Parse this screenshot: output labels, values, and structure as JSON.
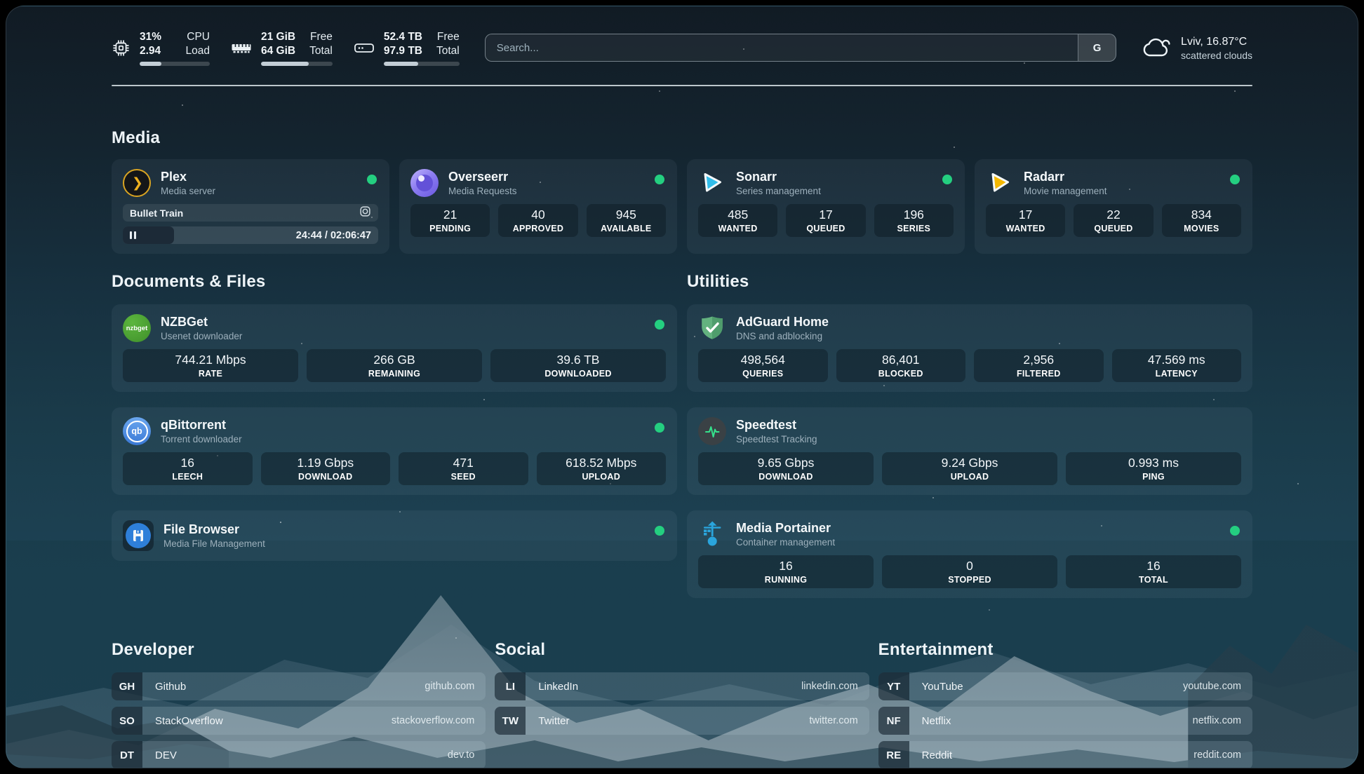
{
  "header": {
    "system_stats": [
      {
        "icon": "cpu-icon",
        "value_top": "31%",
        "value_bottom": "2.94",
        "label_top": "CPU",
        "label_bottom": "Load",
        "progress_pct": 31
      },
      {
        "icon": "ram-icon",
        "value_top": "21 GiB",
        "value_bottom": "64 GiB",
        "label_top": "Free",
        "label_bottom": "Total",
        "progress_pct": 67
      },
      {
        "icon": "disk-icon",
        "value_top": "52.4 TB",
        "value_bottom": "97.9 TB",
        "label_top": "Free",
        "label_bottom": "Total",
        "progress_pct": 46
      }
    ],
    "search": {
      "placeholder": "Search...",
      "button_label": "G"
    },
    "weather": {
      "location_temp": "Lviv, 16.87°C",
      "condition": "scattered clouds"
    }
  },
  "media": {
    "title": "Media",
    "plex": {
      "name": "Plex",
      "subtitle": "Media server",
      "now_playing": "Bullet Train",
      "time": "24:44 / 02:06:47",
      "progress_pct": 20
    },
    "overseerr": {
      "name": "Overseerr",
      "subtitle": "Media Requests",
      "stats": [
        {
          "value": "21",
          "label": "PENDING"
        },
        {
          "value": "40",
          "label": "APPROVED"
        },
        {
          "value": "945",
          "label": "AVAILABLE"
        }
      ]
    },
    "sonarr": {
      "name": "Sonarr",
      "subtitle": "Series management",
      "stats": [
        {
          "value": "485",
          "label": "WANTED"
        },
        {
          "value": "17",
          "label": "QUEUED"
        },
        {
          "value": "196",
          "label": "SERIES"
        }
      ]
    },
    "radarr": {
      "name": "Radarr",
      "subtitle": "Movie management",
      "stats": [
        {
          "value": "17",
          "label": "WANTED"
        },
        {
          "value": "22",
          "label": "QUEUED"
        },
        {
          "value": "834",
          "label": "MOVIES"
        }
      ]
    }
  },
  "documents": {
    "title": "Documents & Files",
    "nzbget": {
      "name": "NZBGet",
      "subtitle": "Usenet downloader",
      "logo_text": "nzbget",
      "stats": [
        {
          "value": "744.21 Mbps",
          "label": "RATE"
        },
        {
          "value": "266 GB",
          "label": "REMAINING"
        },
        {
          "value": "39.6 TB",
          "label": "DOWNLOADED"
        }
      ]
    },
    "qbittorrent": {
      "name": "qBittorrent",
      "subtitle": "Torrent downloader",
      "logo_text": "qb",
      "stats": [
        {
          "value": "16",
          "label": "LEECH"
        },
        {
          "value": "1.19 Gbps",
          "label": "DOWNLOAD"
        },
        {
          "value": "471",
          "label": "SEED"
        },
        {
          "value": "618.52 Mbps",
          "label": "UPLOAD"
        }
      ]
    },
    "filebrowser": {
      "name": "File Browser",
      "subtitle": "Media File Management"
    }
  },
  "utilities": {
    "title": "Utilities",
    "adguard": {
      "name": "AdGuard Home",
      "subtitle": "DNS and adblocking",
      "stats": [
        {
          "value": "498,564",
          "label": "QUERIES"
        },
        {
          "value": "86,401",
          "label": "BLOCKED"
        },
        {
          "value": "2,956",
          "label": "FILTERED"
        },
        {
          "value": "47.569 ms",
          "label": "LATENCY"
        }
      ]
    },
    "speedtest": {
      "name": "Speedtest",
      "subtitle": "Speedtest Tracking",
      "stats": [
        {
          "value": "9.65 Gbps",
          "label": "DOWNLOAD"
        },
        {
          "value": "9.24 Gbps",
          "label": "UPLOAD"
        },
        {
          "value": "0.993 ms",
          "label": "PING"
        }
      ]
    },
    "portainer": {
      "name": "Media Portainer",
      "subtitle": "Container management",
      "stats": [
        {
          "value": "16",
          "label": "RUNNING"
        },
        {
          "value": "0",
          "label": "STOPPED"
        },
        {
          "value": "16",
          "label": "TOTAL"
        }
      ]
    }
  },
  "links": {
    "developer": {
      "title": "Developer",
      "items": [
        {
          "abbr": "GH",
          "name": "Github",
          "url": "github.com"
        },
        {
          "abbr": "SO",
          "name": "StackOverflow",
          "url": "stackoverflow.com"
        },
        {
          "abbr": "DT",
          "name": "DEV",
          "url": "dev.to"
        }
      ]
    },
    "social": {
      "title": "Social",
      "items": [
        {
          "abbr": "LI",
          "name": "LinkedIn",
          "url": "linkedin.com"
        },
        {
          "abbr": "TW",
          "name": "Twitter",
          "url": "twitter.com"
        }
      ]
    },
    "entertainment": {
      "title": "Entertainment",
      "items": [
        {
          "abbr": "YT",
          "name": "YouTube",
          "url": "youtube.com"
        },
        {
          "abbr": "NF",
          "name": "Netflix",
          "url": "netflix.com"
        },
        {
          "abbr": "RE",
          "name": "Reddit",
          "url": "reddit.com"
        }
      ]
    }
  },
  "colors": {
    "status_online": "#24cf80",
    "background_teal": "#1d4254"
  }
}
